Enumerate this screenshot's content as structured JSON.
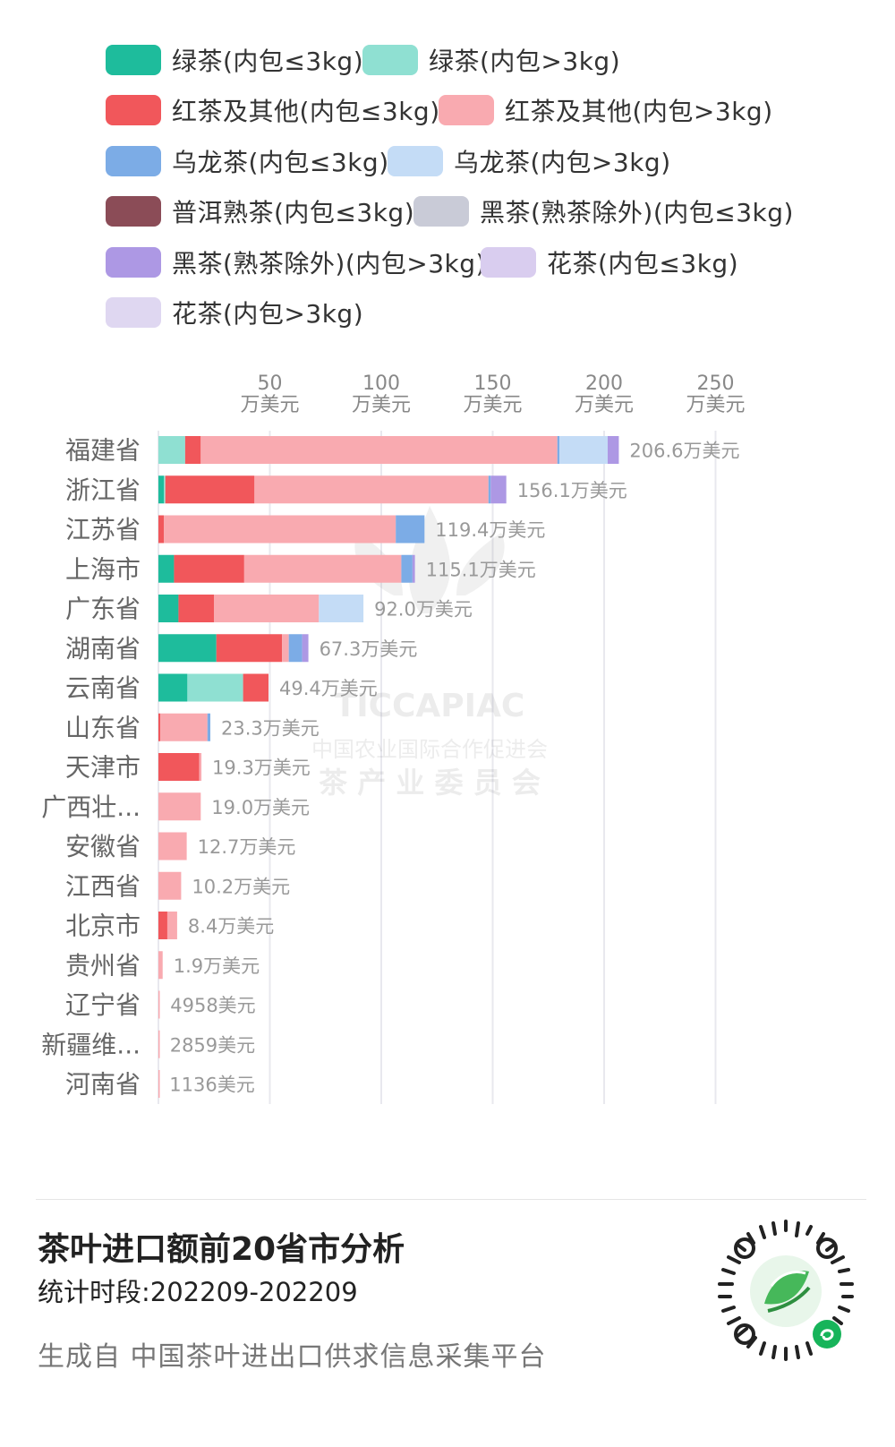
{
  "colors": {
    "green_le3": "#1ebc9c",
    "green_gt3": "#8fe0d2",
    "black_le3": "#f1575b",
    "black_gt3": "#f9aab0",
    "oolong_le3": "#7cace6",
    "oolong_gt3": "#c4dcf6",
    "puer_ripe_le3": "#8b4c57",
    "dark_le3": "#c9cbd7",
    "dark_gt3": "#ad98e4",
    "flower_le3": "#d9cdef",
    "flower_gt3": "#dfd7f1",
    "grid": "#e8e8ee",
    "axis_text": "#888888",
    "value_text": "#999999",
    "category_text": "#666666"
  },
  "legend": [
    {
      "label": "绿茶(内包≤3kg)",
      "color": "#1ebc9c"
    },
    {
      "label": "绿茶(内包>3kg)",
      "color": "#8fe0d2"
    },
    {
      "label": "红茶及其他(内包≤3kg)",
      "color": "#f1575b"
    },
    {
      "label": "红茶及其他(内包>3kg)",
      "color": "#f9aab0"
    },
    {
      "label": "乌龙茶(内包≤3kg)",
      "color": "#7cace6"
    },
    {
      "label": "乌龙茶(内包>3kg)",
      "color": "#c4dcf6"
    },
    {
      "label": "普洱熟茶(内包≤3kg)",
      "color": "#8b4c57"
    },
    {
      "label": "黑茶(熟茶除外)(内包≤3kg)",
      "color": "#c9cbd7"
    },
    {
      "label": "黑茶(熟茶除外)(内包>3kg)",
      "color": "#ad98e4"
    },
    {
      "label": "花茶(内包≤3kg)",
      "color": "#d9cdef"
    },
    {
      "label": "花茶(内包>3kg)",
      "color": "#dfd7f1"
    }
  ],
  "chart_data": {
    "type": "bar",
    "orientation": "horizontal",
    "stacked": true,
    "unit": "万美元",
    "x_ticks": [
      {
        "value": 50,
        "line1": "50",
        "line2": "万美元"
      },
      {
        "value": 100,
        "line1": "100",
        "line2": "万美元"
      },
      {
        "value": 150,
        "line1": "150",
        "line2": "万美元"
      },
      {
        "value": 200,
        "line1": "200",
        "line2": "万美元"
      },
      {
        "value": 250,
        "line1": "250",
        "line2": "万美元"
      }
    ],
    "xlim": [
      0,
      250
    ],
    "grid": true,
    "legend_position": "top",
    "categories": [
      "福建省",
      "浙江省",
      "江苏省",
      "上海市",
      "广东省",
      "湖南省",
      "云南省",
      "山东省",
      "天津市",
      "广西壮...",
      "安徽省",
      "江西省",
      "北京市",
      "贵州省",
      "辽宁省",
      "新疆维...",
      "河南省"
    ],
    "totals": [
      206.6,
      156.1,
      119.4,
      115.1,
      92.0,
      67.3,
      49.4,
      23.3,
      19.3,
      19.0,
      12.7,
      10.2,
      8.4,
      1.9,
      0.4958,
      0.2859,
      0.1136
    ],
    "total_labels": [
      "206.6万美元",
      "156.1万美元",
      "119.4万美元",
      "115.1万美元",
      "92.0万美元",
      "67.3万美元",
      "49.4万美元",
      "23.3万美元",
      "19.3万美元",
      "19.0万美元",
      "12.7万美元",
      "10.2万美元",
      "8.4万美元",
      "1.9万美元",
      "4958美元",
      "2859美元",
      "1136美元"
    ],
    "series": [
      {
        "name": "绿茶(内包≤3kg)",
        "color": "#1ebc9c",
        "values": [
          0,
          2.5,
          0,
          7,
          9,
          26,
          13,
          0,
          0,
          0,
          0,
          0,
          0,
          0,
          0,
          0,
          0
        ]
      },
      {
        "name": "绿茶(内包>3kg)",
        "color": "#8fe0d2",
        "values": [
          12,
          0.6,
          0,
          0,
          0,
          0,
          25,
          0,
          0,
          0,
          0,
          0,
          0,
          0,
          0,
          0,
          0
        ]
      },
      {
        "name": "红茶及其他(内包≤3kg)",
        "color": "#f1575b",
        "values": [
          7,
          40,
          2.5,
          31.5,
          16,
          29.5,
          11.4,
          0.8,
          18.3,
          0,
          0,
          0,
          4,
          0,
          0,
          0,
          0
        ]
      },
      {
        "name": "红茶及其他(内包>3kg)",
        "color": "#f9aab0",
        "values": [
          160,
          105,
          104,
          70.5,
          47,
          3,
          0,
          21.2,
          1,
          19,
          12.7,
          10.2,
          4.4,
          1.9,
          0.4958,
          0.2859,
          0.1136
        ]
      },
      {
        "name": "乌龙茶(内包≤3kg)",
        "color": "#7cace6",
        "values": [
          1,
          1,
          12.9,
          5,
          0,
          6,
          0,
          1.3,
          0,
          0,
          0,
          0,
          0,
          0,
          0,
          0,
          0
        ]
      },
      {
        "name": "乌龙茶(内包>3kg)",
        "color": "#c4dcf6",
        "values": [
          21.6,
          0,
          0,
          0,
          20,
          0,
          0,
          0,
          0,
          0,
          0,
          0,
          0,
          0,
          0,
          0,
          0
        ]
      },
      {
        "name": "普洱熟茶(内包≤3kg)",
        "color": "#8b4c57",
        "values": [
          0,
          0,
          0,
          0,
          0,
          0,
          0,
          0,
          0,
          0,
          0,
          0,
          0,
          0,
          0,
          0,
          0
        ]
      },
      {
        "name": "黑茶(熟茶除外)(内包≤3kg)",
        "color": "#c9cbd7",
        "values": [
          0,
          0,
          0,
          0,
          0,
          0,
          0,
          0,
          0,
          0,
          0,
          0,
          0,
          0,
          0,
          0,
          0
        ]
      },
      {
        "name": "黑茶(熟茶除外)(内包>3kg)",
        "color": "#ad98e4",
        "values": [
          5,
          7,
          0,
          1.1,
          0,
          2.8,
          0,
          0,
          0,
          0,
          0,
          0,
          0,
          0,
          0,
          0,
          0
        ]
      },
      {
        "name": "花茶(内包≤3kg)",
        "color": "#d9cdef",
        "values": [
          0,
          0,
          0,
          0,
          0,
          0,
          0,
          0,
          0,
          0,
          0,
          0,
          0,
          0,
          0,
          0,
          0
        ]
      },
      {
        "name": "花茶(内包>3kg)",
        "color": "#dfd7f1",
        "values": [
          0,
          0,
          0,
          0,
          0,
          0,
          0,
          0,
          0,
          0,
          0,
          0,
          0,
          0,
          0,
          0,
          0
        ]
      }
    ]
  },
  "watermark": {
    "line1": "TICCAPIAC",
    "line2": "中国农业国际合作促进会",
    "line3": "茶 产 业 委 员 会"
  },
  "footer": {
    "title": "茶叶进口额前20省市分析",
    "period": "统计时段:202209-202209",
    "source": "生成自 中国茶叶进出口供求信息采集平台",
    "qr_icon": "mini-program-qr-code-icon"
  }
}
